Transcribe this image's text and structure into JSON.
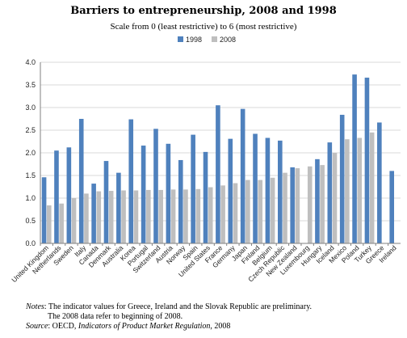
{
  "title": "Barriers to entrepreneurship, 2008 and 1998",
  "subtitle": "Scale from 0 (least restrictive) to 6 (most restrictive)",
  "notes": {
    "label": "Notes",
    "line1": ": The indicator values for Greece, Ireland and the Slovak Republic are preliminary.",
    "line2": "The 2008 data refer to beginning of 2008.",
    "source_label": "Source",
    "source_sep": ": OECD, ",
    "source_title": "Indicators of Product Market Regulation",
    "source_year": ", 2008"
  },
  "colors": {
    "s1998": "#4f81bd",
    "s2008": "#bfbfbf"
  },
  "chart_data": {
    "type": "bar",
    "title": "Barriers to entrepreneurship, 2008 and 1998",
    "subtitle": "Scale from 0 (least restrictive) to 6 (most restrictive)",
    "xlabel": "",
    "ylabel": "",
    "ylim": [
      0,
      4.0
    ],
    "yticks": [
      "0.0",
      "0.5",
      "1.0",
      "1.5",
      "2.0",
      "2.5",
      "3.0",
      "3.5",
      "4.0"
    ],
    "grid": true,
    "legend": "top-center",
    "categories": [
      "United Kingdom",
      "Netherlands",
      "Sweden",
      "Italy",
      "Canada",
      "Denmark",
      "Australia",
      "Korea",
      "Portugal",
      "Switzerland",
      "Austria",
      "Norway",
      "Spain",
      "United States",
      "France",
      "Germany",
      "Japan",
      "Finland",
      "Belgium",
      "Czech Republic",
      "New Zealand",
      "Luxembourg",
      "Hungary",
      "Iceland",
      "Mexico",
      "Poland",
      "Turkey",
      "Greece",
      "Ireland"
    ],
    "series": [
      {
        "name": "1998",
        "color": "#4f81bd",
        "values": [
          1.46,
          2.05,
          2.12,
          2.75,
          1.32,
          1.82,
          1.56,
          2.74,
          2.16,
          2.53,
          2.2,
          1.84,
          2.4,
          2.02,
          3.05,
          2.31,
          2.97,
          2.42,
          2.33,
          2.27,
          1.68,
          null,
          1.86,
          2.23,
          2.84,
          3.73,
          3.66,
          2.67,
          1.6
        ]
      },
      {
        "name": "2008",
        "color": "#bfbfbf",
        "values": [
          0.84,
          0.88,
          1.0,
          1.1,
          1.15,
          1.16,
          1.17,
          1.17,
          1.18,
          1.18,
          1.19,
          1.19,
          1.2,
          1.24,
          1.28,
          1.33,
          1.4,
          1.4,
          1.45,
          1.56,
          1.66,
          1.7,
          1.73,
          2.0,
          2.3,
          2.33,
          2.45,
          null,
          null
        ]
      }
    ]
  }
}
